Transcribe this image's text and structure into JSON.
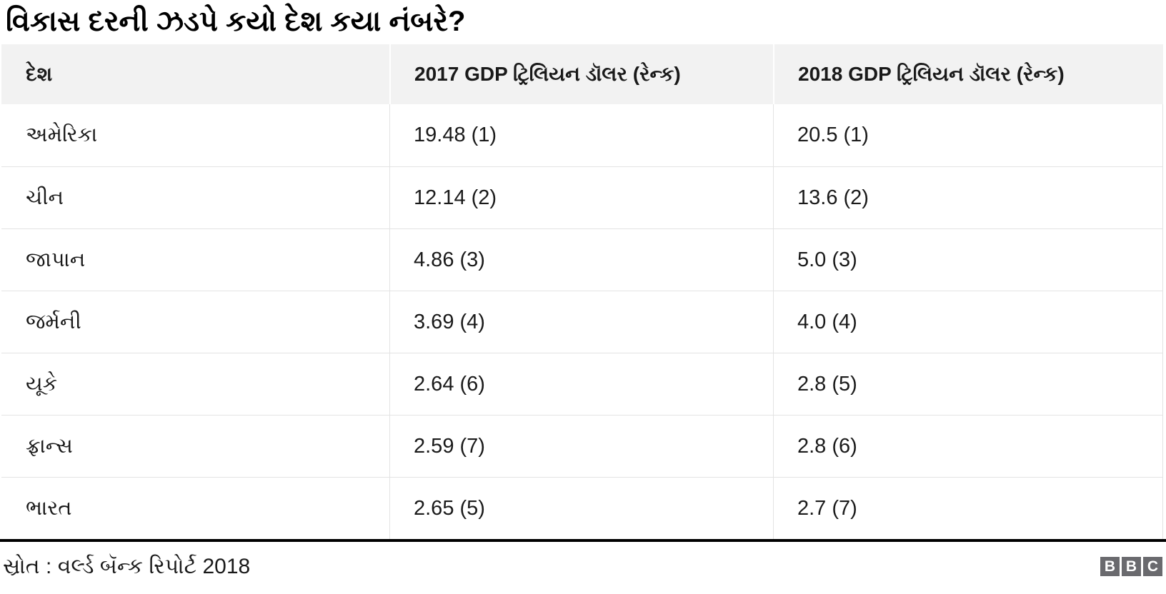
{
  "title": "વિકાસ દરની ઝડપે કયો દેશ કયા નંબરે?",
  "chart_data": {
    "type": "table",
    "title": "વિકાસ દરની ઝડપે કયો દેશ કયા નંબરે?",
    "columns": [
      "દેશ",
      "2017 GDP ટ્રિલિયન ડૉલર (રેન્ક)",
      "2018 GDP ટ્રિલિયન ડૉલર (રેન્ક)"
    ],
    "rows": [
      [
        "અમેરિકા",
        "19.48 (1)",
        "20.5 (1)"
      ],
      [
        "ચીન",
        "12.14 (2)",
        "13.6 (2)"
      ],
      [
        "જાપાન",
        "4.86 (3)",
        "5.0 (3)"
      ],
      [
        "જર્મની",
        "3.69 (4)",
        "4.0 (4)"
      ],
      [
        "યૂકે",
        "2.64 (6)",
        "2.8 (5)"
      ],
      [
        "ફ્રાન્સ",
        "2.59 (7)",
        "2.8 (6)"
      ],
      [
        "ભારત",
        "2.65 (5)",
        "2.7 (7)"
      ]
    ],
    "parsed": {
      "countries": [
        "અમેરિકા",
        "ચીન",
        "જાપાન",
        "જર્મની",
        "યૂકે",
        "ફ્રાન્સ",
        "ભારત"
      ],
      "gdp_2017_trillion_usd": [
        19.48,
        12.14,
        4.86,
        3.69,
        2.64,
        2.59,
        2.65
      ],
      "rank_2017": [
        1,
        2,
        3,
        4,
        6,
        7,
        5
      ],
      "gdp_2018_trillion_usd": [
        20.5,
        13.6,
        5.0,
        4.0,
        2.8,
        2.8,
        2.7
      ],
      "rank_2018": [
        1,
        2,
        3,
        4,
        5,
        6,
        7
      ]
    }
  },
  "footer": {
    "source": "સ્રોત : વર્લ્ડ બૅન્ક રિપોર્ટ 2018",
    "logo_letters": [
      "B",
      "B",
      "C"
    ]
  },
  "colors": {
    "header_bg": "#f2f2f2",
    "divider": "#e3e3e3",
    "text": "#1a1a1a",
    "rule": "#000000",
    "logo_bg": "#6a6a6e",
    "logo_letter": "#ffffff"
  }
}
